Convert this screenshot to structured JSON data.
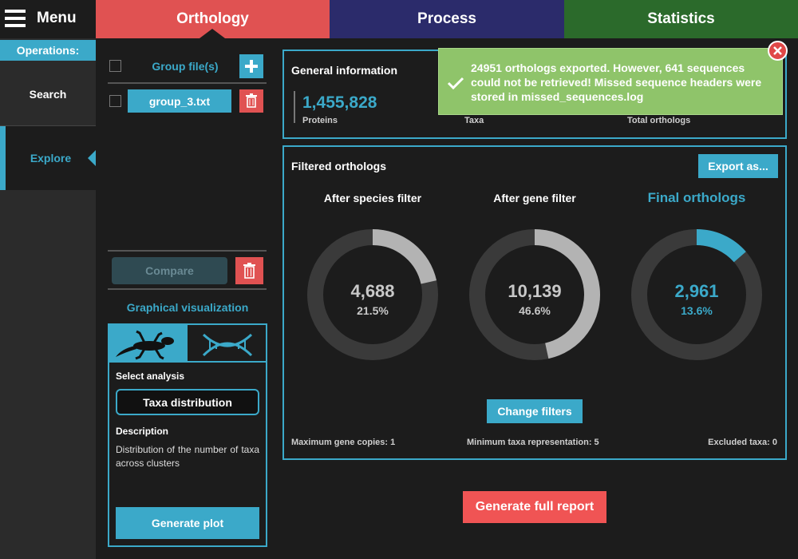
{
  "tabs": {
    "menu": "Menu",
    "items": [
      "Orthology",
      "Process",
      "Statistics"
    ]
  },
  "sidebar": {
    "heading": "Operations:",
    "items": [
      "Search",
      "Explore"
    ]
  },
  "files": {
    "header": "Group file(s)",
    "items": [
      "group_3.txt"
    ],
    "compare": "Compare"
  },
  "visualization": {
    "title": "Graphical visualization",
    "select_label": "Select analysis",
    "selected": "Taxa distribution",
    "description_label": "Description",
    "description": "Distribution of the number of taxa across clusters",
    "button": "Generate plot"
  },
  "general": {
    "title": "General information",
    "stats": [
      {
        "value": "1,455,828",
        "label": "Proteins"
      },
      {
        "label": "Taxa"
      },
      {
        "label": "Total orthologs"
      }
    ]
  },
  "notification": "24951 orthologs exported. However, 641 sequences could not be retrieved! Missed sequence headers were stored in missed_sequences.log",
  "filtered": {
    "title": "Filtered orthologs",
    "export": "Export as...",
    "donuts": [
      {
        "title": "After species filter",
        "count": "4,688",
        "percent": 21.5,
        "percent_label": "21.5%",
        "color": "#b3b3b3"
      },
      {
        "title": "After gene filter",
        "count": "10,139",
        "percent": 46.6,
        "percent_label": "46.6%",
        "color": "#b3b3b3"
      },
      {
        "title": "Final orthologs",
        "count": "2,961",
        "percent": 13.6,
        "percent_label": "13.6%",
        "color": "#3ba9c9"
      }
    ],
    "change_filters": "Change filters",
    "footer": [
      "Maximum gene copies: 1",
      "Minimum taxa representation: 5",
      "Excluded taxa: 0"
    ]
  },
  "report_button": "Generate full report"
}
